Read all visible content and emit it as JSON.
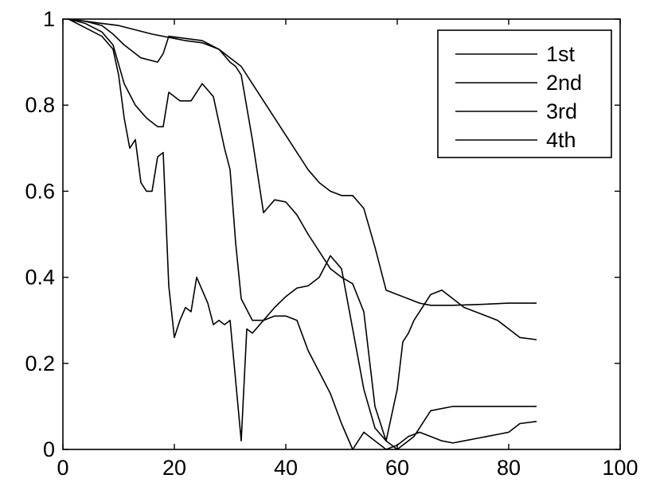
{
  "chart_data": {
    "type": "line",
    "title": "",
    "xlabel": "",
    "ylabel": "",
    "xlim": [
      0,
      100
    ],
    "ylim": [
      0,
      1
    ],
    "xticks": [
      0,
      20,
      40,
      60,
      80,
      100
    ],
    "yticks": [
      0,
      0.2,
      0.4,
      0.6,
      0.8,
      1
    ],
    "xtick_labels": [
      "0",
      "20",
      "40",
      "60",
      "80",
      "100"
    ],
    "ytick_labels": [
      "0",
      "0.2",
      "0.4",
      "0.6",
      "0.8",
      "1"
    ],
    "grid": false,
    "legend_position": "top-right",
    "line_color": "#000000",
    "series": [
      {
        "name": "1st",
        "x": [
          1,
          4,
          7,
          10,
          13,
          16,
          18,
          20,
          22,
          25,
          28,
          30,
          32,
          34,
          36,
          38,
          40,
          42,
          44,
          46,
          48,
          50,
          52,
          54,
          56,
          58,
          60,
          62,
          64,
          66,
          70,
          75,
          80,
          85
        ],
        "y": [
          1.0,
          0.995,
          0.99,
          0.985,
          0.975,
          0.965,
          0.96,
          0.955,
          0.95,
          0.945,
          0.93,
          0.91,
          0.89,
          0.85,
          0.81,
          0.77,
          0.73,
          0.69,
          0.65,
          0.62,
          0.6,
          0.59,
          0.59,
          0.56,
          0.47,
          0.37,
          0.36,
          0.35,
          0.34,
          0.335,
          0.335,
          0.337,
          0.34,
          0.34
        ]
      },
      {
        "name": "2nd",
        "x": [
          1,
          4,
          7,
          9,
          11,
          14,
          17,
          18,
          19,
          22,
          25,
          28,
          30,
          31,
          32,
          34,
          36,
          38,
          40,
          42,
          44,
          46,
          48,
          50,
          52,
          54,
          56,
          58,
          60,
          63,
          66,
          70,
          75,
          78,
          82,
          85
        ],
        "y": [
          1.0,
          0.995,
          0.985,
          0.965,
          0.94,
          0.91,
          0.9,
          0.92,
          0.96,
          0.955,
          0.95,
          0.93,
          0.9,
          0.89,
          0.87,
          0.72,
          0.55,
          0.58,
          0.575,
          0.545,
          0.5,
          0.46,
          0.42,
          0.4,
          0.385,
          0.32,
          0.1,
          0.02,
          0.0,
          0.03,
          0.09,
          0.1,
          0.1,
          0.1,
          0.1,
          0.1
        ]
      },
      {
        "name": "3rd",
        "x": [
          1,
          4,
          7,
          9,
          11,
          13,
          15,
          17,
          18,
          19,
          21,
          23,
          25,
          27,
          29,
          30,
          31,
          32,
          34,
          36,
          38,
          40,
          42,
          44,
          46,
          48,
          50,
          52,
          54,
          56,
          58,
          60,
          62,
          64,
          66,
          68,
          70,
          72,
          74,
          76,
          78,
          80,
          82,
          85
        ],
        "y": [
          1.0,
          0.99,
          0.97,
          0.94,
          0.85,
          0.8,
          0.77,
          0.75,
          0.75,
          0.83,
          0.81,
          0.81,
          0.85,
          0.82,
          0.7,
          0.65,
          0.48,
          0.35,
          0.3,
          0.3,
          0.31,
          0.31,
          0.3,
          0.23,
          0.18,
          0.13,
          0.06,
          0.0,
          0.04,
          0.02,
          0.0,
          0.01,
          0.03,
          0.04,
          0.03,
          0.02,
          0.015,
          0.02,
          0.025,
          0.03,
          0.035,
          0.04,
          0.06,
          0.065
        ]
      },
      {
        "name": "4th",
        "x": [
          1,
          4,
          7,
          9,
          10,
          11,
          12,
          13,
          14,
          15,
          16,
          17,
          18,
          19,
          20,
          21,
          22,
          23,
          24,
          25,
          26,
          27,
          28,
          29,
          30,
          31,
          32,
          33,
          34,
          36,
          38,
          40,
          42,
          44,
          46,
          48,
          50,
          52,
          54,
          56,
          58,
          60,
          61,
          62,
          63,
          64,
          66,
          68,
          70,
          72,
          74,
          76,
          78,
          80,
          82,
          85
        ],
        "y": [
          1.0,
          0.98,
          0.96,
          0.93,
          0.87,
          0.77,
          0.7,
          0.72,
          0.62,
          0.6,
          0.6,
          0.68,
          0.69,
          0.38,
          0.26,
          0.3,
          0.33,
          0.32,
          0.4,
          0.37,
          0.34,
          0.29,
          0.3,
          0.29,
          0.3,
          0.16,
          0.02,
          0.28,
          0.27,
          0.3,
          0.33,
          0.355,
          0.375,
          0.38,
          0.4,
          0.45,
          0.42,
          0.28,
          0.14,
          0.05,
          0.02,
          0.14,
          0.25,
          0.27,
          0.3,
          0.32,
          0.36,
          0.37,
          0.35,
          0.33,
          0.32,
          0.31,
          0.3,
          0.28,
          0.26,
          0.255
        ]
      }
    ]
  }
}
